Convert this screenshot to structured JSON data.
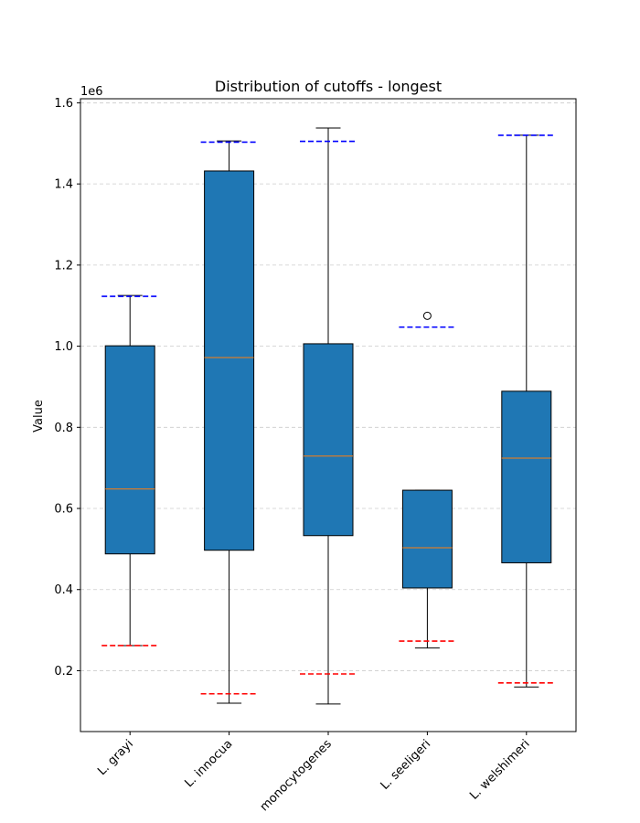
{
  "chart_data": {
    "type": "box",
    "title": "Distribution of cutoffs - longest",
    "xlabel": "",
    "ylabel": "Value",
    "y_multiplier_label": "1e6",
    "ylim": [
      0.05,
      1.61
    ],
    "yticks": [
      0.2,
      0.4,
      0.6,
      0.8,
      1.0,
      1.2,
      1.4,
      1.6
    ],
    "ytick_labels": [
      "0.2",
      "0.4",
      "0.6",
      "0.8",
      "1.0",
      "1.2",
      "1.4",
      "1.6"
    ],
    "grid": true,
    "box_color": "#1f77b4",
    "median_color": "#ff7f0e",
    "upper_cutoff_color": "#0000ff",
    "lower_cutoff_color": "#ff0000",
    "categories": [
      "L. grayi",
      "L. innocua",
      "monocytogenes",
      "L. seeligeri",
      "L. welshimeri"
    ],
    "boxes": [
      {
        "whisker_low": 0.262,
        "q1": 0.488,
        "median": 0.648,
        "q3": 1.001,
        "whisker_high": 1.125,
        "outliers": [],
        "upper_cutoff": 1.123,
        "lower_cutoff": 0.262
      },
      {
        "whisker_low": 0.12,
        "q1": 0.497,
        "median": 0.972,
        "q3": 1.432,
        "whisker_high": 1.506,
        "outliers": [],
        "upper_cutoff": 1.503,
        "lower_cutoff": 0.143
      },
      {
        "whisker_low": 0.118,
        "q1": 0.533,
        "median": 0.729,
        "q3": 1.006,
        "whisker_high": 1.538,
        "outliers": [],
        "upper_cutoff": 1.505,
        "lower_cutoff": 0.192
      },
      {
        "whisker_low": 0.256,
        "q1": 0.404,
        "median": 0.503,
        "q3": 0.645,
        "whisker_high": 0.645,
        "outliers": [
          1.075
        ],
        "upper_cutoff": 1.047,
        "lower_cutoff": 0.273
      },
      {
        "whisker_low": 0.16,
        "q1": 0.466,
        "median": 0.724,
        "q3": 0.889,
        "whisker_high": 1.52,
        "outliers": [],
        "upper_cutoff": 1.52,
        "lower_cutoff": 0.17
      }
    ]
  }
}
